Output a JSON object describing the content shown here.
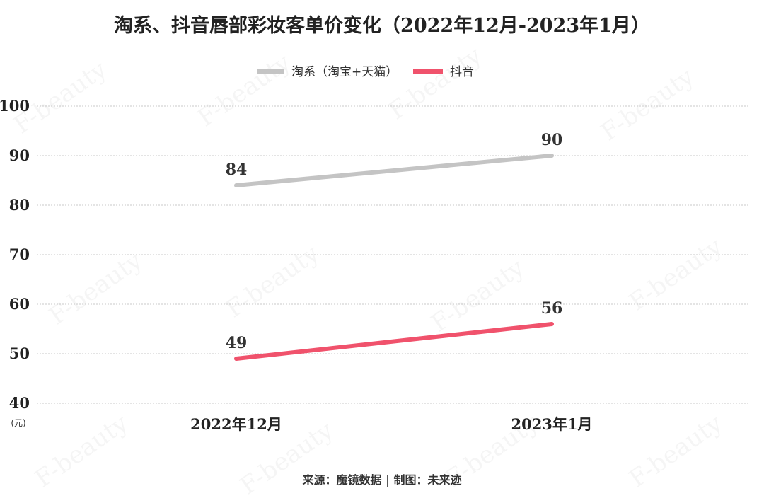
{
  "title": "淘系、抖音唇部彩妆客单价变化（2022年12月-2023年1月）",
  "unit": "(元)",
  "source": "来源：魔镜数据 | 制图：未来迹",
  "watermark": "F-beauty",
  "chart_data": {
    "type": "line",
    "categories": [
      "2022年12月",
      "2023年1月"
    ],
    "series": [
      {
        "name": "淘系（淘宝+天猫）",
        "values": [
          84,
          90
        ],
        "labels": [
          "84",
          "90"
        ],
        "color": "#c4c4c4"
      },
      {
        "name": "抖音",
        "values": [
          49,
          56
        ],
        "labels": [
          "49",
          "56"
        ],
        "color": "#f0526c"
      }
    ],
    "ylim": [
      40,
      100
    ],
    "yticks": [
      40,
      50,
      60,
      70,
      80,
      90,
      100
    ],
    "grid": true,
    "legend_position": "top-center"
  }
}
